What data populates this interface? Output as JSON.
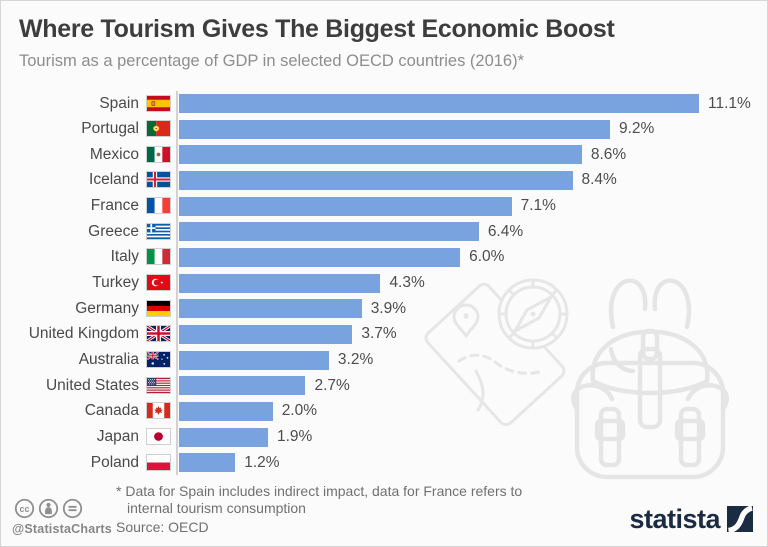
{
  "header": {
    "title": "Where Tourism Gives The Biggest Economic Boost",
    "subtitle": "Tourism as a percentage of GDP in selected OECD countries (2016)*"
  },
  "chart_data": {
    "type": "bar",
    "orientation": "horizontal",
    "title": "Where Tourism Gives The Biggest Economic Boost",
    "subtitle": "Tourism as a percentage of GDP in selected OECD countries (2016)*",
    "value_unit": "% of GDP",
    "axis": {
      "min": 0,
      "max_shown_value": 11.1,
      "gridlines": false,
      "value_labels": "end-of-bar"
    },
    "legend": "none",
    "bar_color": "#79a3df",
    "categories": [
      "Spain",
      "Portugal",
      "Mexico",
      "Iceland",
      "France",
      "Greece",
      "Italy",
      "Turkey",
      "Germany",
      "United Kingdom",
      "Australia",
      "United States",
      "Canada",
      "Japan",
      "Poland"
    ],
    "values": [
      11.1,
      9.2,
      8.6,
      8.4,
      7.1,
      6.4,
      6.0,
      4.3,
      3.9,
      3.7,
      3.2,
      2.7,
      2.0,
      1.9,
      1.2
    ],
    "rows": [
      {
        "country": "Spain",
        "flag": "es",
        "value": 11.1,
        "value_label": "11.1%"
      },
      {
        "country": "Portugal",
        "flag": "pt",
        "value": 9.2,
        "value_label": "9.2%"
      },
      {
        "country": "Mexico",
        "flag": "mx",
        "value": 8.6,
        "value_label": "8.6%"
      },
      {
        "country": "Iceland",
        "flag": "is",
        "value": 8.4,
        "value_label": "8.4%"
      },
      {
        "country": "France",
        "flag": "fr",
        "value": 7.1,
        "value_label": "7.1%"
      },
      {
        "country": "Greece",
        "flag": "gr",
        "value": 6.4,
        "value_label": "6.4%"
      },
      {
        "country": "Italy",
        "flag": "it",
        "value": 6.0,
        "value_label": "6.0%"
      },
      {
        "country": "Turkey",
        "flag": "tr",
        "value": 4.3,
        "value_label": "4.3%"
      },
      {
        "country": "Germany",
        "flag": "de",
        "value": 3.9,
        "value_label": "3.9%"
      },
      {
        "country": "United Kingdom",
        "flag": "gb",
        "value": 3.7,
        "value_label": "3.7%"
      },
      {
        "country": "Australia",
        "flag": "au",
        "value": 3.2,
        "value_label": "3.2%"
      },
      {
        "country": "United States",
        "flag": "us",
        "value": 2.7,
        "value_label": "2.7%"
      },
      {
        "country": "Canada",
        "flag": "ca",
        "value": 2.0,
        "value_label": "2.0%"
      },
      {
        "country": "Japan",
        "flag": "jp",
        "value": 1.9,
        "value_label": "1.9%"
      },
      {
        "country": "Poland",
        "flag": "pl",
        "value": 1.2,
        "value_label": "1.2%"
      }
    ]
  },
  "watermarks": [
    "map-and-compass",
    "backpack"
  ],
  "footer": {
    "note_line1": "* Data for Spain includes indirect impact, data for France refers to",
    "note_line2": "internal tourism consumption",
    "source": "Source: OECD",
    "credit_handle": "@StatistaCharts",
    "license_icons": [
      "cc",
      "by",
      "nd"
    ],
    "brand": "statista"
  },
  "colors": {
    "bar": "#79a3df",
    "title_text": "#3d3d3d",
    "subtitle_text": "#8d8d8d",
    "footnote_text": "#707070",
    "axis_line": "#d2d2d2",
    "brand_navy": "#1b2b42",
    "watermark_stroke": "#e6e6e6"
  }
}
